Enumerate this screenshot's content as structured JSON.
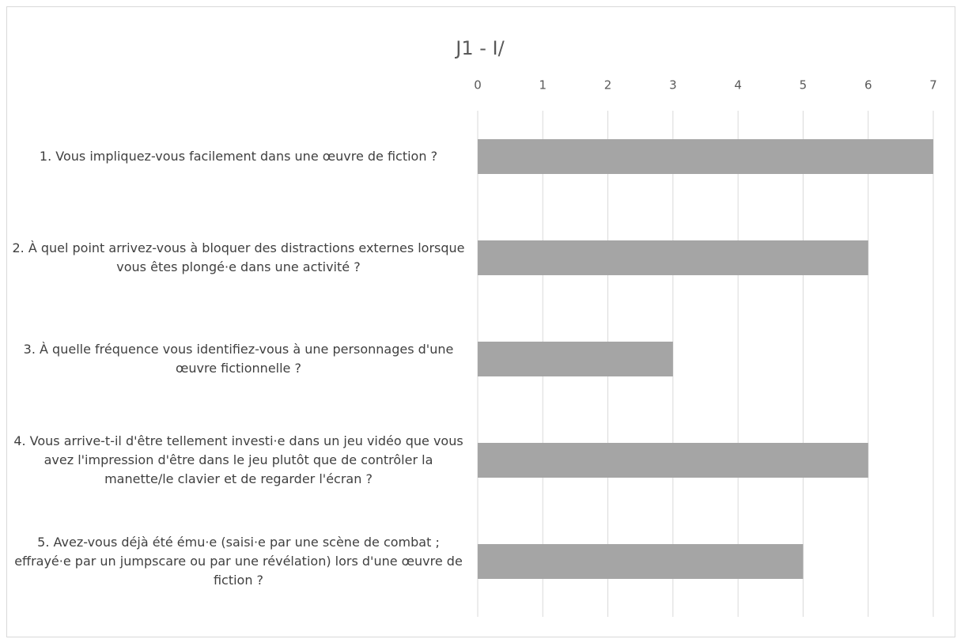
{
  "chart_data": {
    "type": "barh",
    "title": "J1 - I/",
    "categories": [
      "1. Vous impliquez-vous facilement dans une œuvre de fiction ?",
      "2. À quel point arrivez-vous à bloquer des distractions externes lorsque vous êtes plongé·e dans une activité ?",
      "3. À quelle fréquence vous identifiez-vous à une personnages d'une œuvre fictionnelle ?",
      "4. Vous arrive-t-il d'être tellement investi·e dans un jeu vidéo que vous avez l'impression d'être dans le jeu plutôt que de contrôler la manette/le clavier et de regarder l'écran ?",
      "5. Avez-vous déjà été ému·e (saisi·e par une scène de combat ; effrayé·e par un jumpscare ou par une révélation) lors d'une œuvre de fiction ?"
    ],
    "values": [
      7,
      6,
      3,
      6,
      5
    ],
    "color": "#a5a5a5",
    "xlim": [
      0,
      7
    ],
    "xticks": [
      0,
      1,
      2,
      3,
      4,
      5,
      6,
      7
    ],
    "grid": true
  }
}
